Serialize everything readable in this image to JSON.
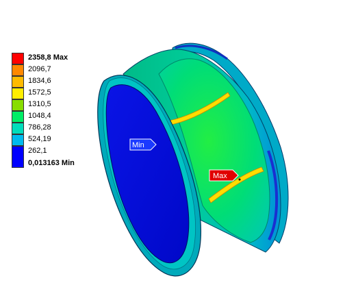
{
  "legend": {
    "max_label": "2358,8 Max",
    "min_label": "0,013163 Min",
    "levels": [
      "2096,7",
      "1834,6",
      "1572,5",
      "1310,5",
      "1048,4",
      "786,28",
      "524,19",
      "262,1"
    ],
    "colors": [
      "#ff0000",
      "#ff8800",
      "#ffbb00",
      "#ffee00",
      "#88dd00",
      "#00ee66",
      "#00ddbb",
      "#00bbee",
      "#0000ff"
    ]
  },
  "probes": {
    "min_text": "Min",
    "max_text": "Max",
    "min_color": "#1a3aff",
    "max_color": "#e00000"
  }
}
